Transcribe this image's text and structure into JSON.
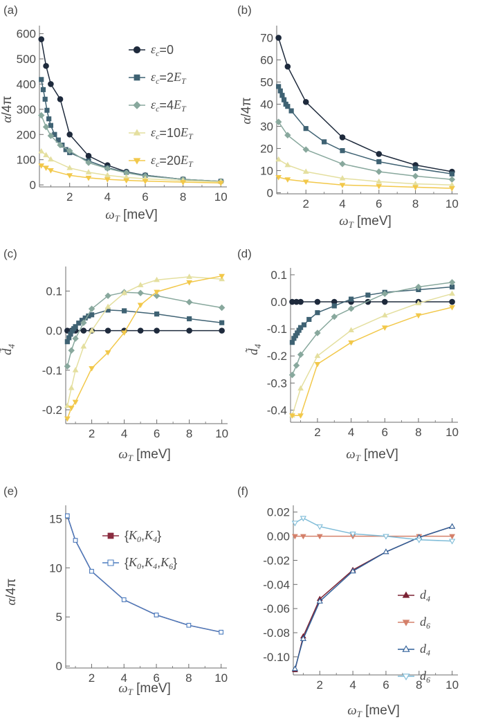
{
  "figure": {
    "panel_labels": [
      "(a)",
      "(b)",
      "(c)",
      "(d)",
      "(e)",
      "(f)"
    ]
  },
  "colors": {
    "c0": "#1e2a3c",
    "c2": "#3f6273",
    "c4": "#88a89d",
    "c10": "#e4df9f",
    "c20": "#f2c84a",
    "e1": "#8b2d40",
    "e2": "#4b7cbf",
    "f_d4a": "#7b2233",
    "f_d6a": "#d4806a",
    "f_d4b": "#2f5f98",
    "f_d6b": "#7fbcd8",
    "axis": "#6b6b6b"
  },
  "chart_data": [
    {
      "panel": "(a)",
      "type": "line",
      "xlabel": "ωT [meV]",
      "ylabel": "α/4π",
      "xlim": [
        0.4,
        10.1
      ],
      "ylim": [
        -8,
        610
      ],
      "xticks": [
        2,
        4,
        6,
        8,
        10
      ],
      "yticks": [
        0,
        100,
        200,
        300,
        400,
        500,
        600
      ],
      "ytick_labels": [
        "0",
        "100",
        "200",
        "300",
        "400",
        "500",
        "600"
      ],
      "legend": "top-right",
      "series": [
        {
          "name": "εc=0",
          "color_key": "c0",
          "marker": "circle",
          "x": [
            0.5,
            0.75,
            1,
            1.5,
            2,
            3,
            4,
            5,
            6,
            8,
            10
          ],
          "y": [
            578,
            472,
            400,
            340,
            200,
            115,
            78,
            52,
            38,
            22,
            14
          ]
        },
        {
          "name": "εc=2ET",
          "color_key": "c2",
          "marker": "square",
          "x": [
            0.5,
            0.6,
            0.7,
            0.8,
            0.9,
            1,
            1.2,
            1.4,
            1.6,
            1.8,
            2,
            3,
            4,
            5,
            6,
            8,
            10
          ],
          "y": [
            418,
            378,
            340,
            296,
            262,
            236,
            200,
            178,
            158,
            140,
            128,
            95,
            68,
            50,
            38,
            22,
            14
          ]
        },
        {
          "name": "εc=4ET",
          "color_key": "c4",
          "marker": "diamond",
          "x": [
            0.5,
            0.75,
            1,
            1.5,
            2,
            3,
            4,
            5,
            6,
            8,
            10
          ],
          "y": [
            276,
            230,
            195,
            158,
            135,
            88,
            65,
            48,
            35,
            22,
            14
          ]
        },
        {
          "name": "εc=10ET",
          "color_key": "c10",
          "marker": "triangle",
          "x": [
            0.5,
            0.75,
            1,
            2,
            3,
            4,
            5,
            6,
            8,
            10
          ],
          "y": [
            133,
            118,
            101,
            67,
            50,
            38,
            30,
            24,
            17,
            12
          ]
        },
        {
          "name": "εc=20ET",
          "color_key": "c20",
          "marker": "triangle-down",
          "x": [
            0.5,
            0.75,
            1,
            2,
            3,
            4,
            5,
            6,
            8,
            10
          ],
          "y": [
            77,
            68,
            58,
            38,
            28,
            22,
            18,
            15,
            11,
            8
          ]
        }
      ]
    },
    {
      "panel": "(b)",
      "type": "line",
      "xlabel": "ωT [meV]",
      "ylabel": "α/4π",
      "xlim": [
        0.4,
        10.1
      ],
      "ylim": [
        -0.5,
        73
      ],
      "xticks": [
        2,
        4,
        6,
        8,
        10
      ],
      "yticks": [
        0,
        10,
        20,
        30,
        40,
        50,
        60,
        70
      ],
      "ytick_labels": [
        "0",
        "10",
        "20",
        "30",
        "40",
        "50",
        "60",
        "70"
      ],
      "series": [
        {
          "name": "εc=0",
          "color_key": "c0",
          "marker": "circle",
          "x": [
            0.5,
            1,
            2,
            4,
            6,
            8,
            10
          ],
          "y": [
            70,
            57,
            41,
            25,
            17.5,
            12.5,
            9.5
          ]
        },
        {
          "name": "εc=2ET",
          "color_key": "c2",
          "marker": "square",
          "x": [
            0.5,
            0.6,
            0.7,
            0.8,
            0.9,
            1,
            1.2,
            2,
            3,
            4,
            6,
            8,
            10
          ],
          "y": [
            48,
            46,
            44,
            42,
            40,
            39,
            37,
            29,
            23,
            19,
            14,
            11,
            8.5
          ]
        },
        {
          "name": "εc=4ET",
          "color_key": "c4",
          "marker": "diamond",
          "x": [
            0.5,
            1,
            2,
            4,
            6,
            8,
            10
          ],
          "y": [
            32,
            26,
            19.5,
            13,
            9.5,
            7.5,
            6
          ]
        },
        {
          "name": "εc=10ET",
          "color_key": "c10",
          "marker": "triangle",
          "x": [
            0.5,
            1,
            2,
            4,
            6,
            8,
            10
          ],
          "y": [
            15,
            12.5,
            9.5,
            6.5,
            5,
            4,
            3.5
          ]
        },
        {
          "name": "εc=20ET",
          "color_key": "c20",
          "marker": "triangle-down",
          "x": [
            0.5,
            1,
            2,
            4,
            6,
            8,
            10
          ],
          "y": [
            7,
            6,
            5,
            3.5,
            3,
            2.5,
            2
          ]
        }
      ]
    },
    {
      "panel": "(c)",
      "type": "line",
      "xlabel": "ωT [meV]",
      "ylabel": "d̃4",
      "xlim": [
        0.4,
        10.1
      ],
      "ylim": [
        -0.235,
        0.148
      ],
      "xticks": [
        2,
        4,
        6,
        8,
        10
      ],
      "yticks": [
        -0.2,
        -0.1,
        0.0,
        0.1
      ],
      "ytick_labels": [
        "-0.2",
        "-0.1",
        "0.0",
        "0.1"
      ],
      "series": [
        {
          "name": "εc=0",
          "color_key": "c0",
          "marker": "circle",
          "x": [
            0.5,
            0.75,
            1,
            1.5,
            2,
            3,
            4,
            5,
            6,
            8,
            10
          ],
          "y": [
            0,
            0,
            0,
            0,
            0,
            0,
            0,
            0,
            0,
            0,
            0
          ]
        },
        {
          "name": "εc=2ET",
          "color_key": "c2",
          "marker": "square",
          "x": [
            0.5,
            0.6,
            0.7,
            0.8,
            0.9,
            1,
            1.2,
            1.4,
            1.6,
            1.8,
            2,
            3,
            4,
            6,
            8,
            10
          ],
          "y": [
            -0.028,
            -0.018,
            -0.009,
            -0.001,
            0.005,
            0.01,
            0.019,
            0.026,
            0.032,
            0.037,
            0.04,
            0.052,
            0.05,
            0.042,
            0.03,
            0.02
          ]
        },
        {
          "name": "εc=4ET",
          "color_key": "c4",
          "marker": "diamond",
          "x": [
            0.5,
            0.75,
            1,
            1.5,
            2,
            3,
            4,
            5,
            6,
            8,
            10
          ],
          "y": [
            -0.09,
            -0.05,
            -0.02,
            0.02,
            0.055,
            0.088,
            0.097,
            0.095,
            0.088,
            0.072,
            0.058
          ]
        },
        {
          "name": "εc=10ET",
          "color_key": "c10",
          "marker": "triangle",
          "x": [
            0.5,
            0.75,
            1,
            1.5,
            2,
            3,
            4,
            5,
            6,
            8,
            10
          ],
          "y": [
            -0.19,
            -0.145,
            -0.1,
            -0.04,
            0.0,
            0.06,
            0.095,
            0.115,
            0.128,
            0.136,
            0.13
          ]
        },
        {
          "name": "εc=20ET",
          "color_key": "c20",
          "marker": "triangle-down",
          "x": [
            0.5,
            0.75,
            1,
            2,
            3,
            4,
            5,
            6,
            8,
            10
          ],
          "y": [
            -0.222,
            -0.195,
            -0.18,
            -0.095,
            -0.055,
            -0.005,
            0.065,
            0.098,
            0.122,
            0.138
          ]
        }
      ]
    },
    {
      "panel": "(d)",
      "type": "line",
      "xlabel": "ωT [meV]",
      "ylabel": "d̃4",
      "xlim": [
        0.4,
        10.1
      ],
      "ylim": [
        -0.445,
        0.105
      ],
      "xticks": [
        2,
        4,
        6,
        8,
        10
      ],
      "yticks": [
        -0.4,
        -0.3,
        -0.2,
        -0.1,
        0.0,
        0.1
      ],
      "ytick_labels": [
        "-0.4",
        "-0.3",
        "-0.2",
        "-0.1",
        "0.0",
        "0.1"
      ],
      "series": [
        {
          "name": "εc=0",
          "color_key": "c0",
          "marker": "circle",
          "x": [
            0.5,
            0.75,
            1,
            2,
            3,
            4,
            5,
            6,
            8,
            10
          ],
          "y": [
            0,
            0,
            0,
            0,
            0,
            0,
            0,
            0,
            0,
            0
          ]
        },
        {
          "name": "εc=2ET",
          "color_key": "c2",
          "marker": "square",
          "x": [
            0.5,
            0.6,
            0.7,
            0.8,
            0.9,
            1,
            1.2,
            1.5,
            2,
            3,
            4,
            5,
            6,
            8,
            10
          ],
          "y": [
            -0.15,
            -0.135,
            -0.125,
            -0.115,
            -0.105,
            -0.095,
            -0.085,
            -0.065,
            -0.04,
            -0.015,
            0.01,
            0.025,
            0.035,
            0.045,
            0.055
          ]
        },
        {
          "name": "εc=4ET",
          "color_key": "c4",
          "marker": "diamond",
          "x": [
            0.5,
            0.75,
            1,
            2,
            3,
            4,
            6,
            8,
            10
          ],
          "y": [
            -0.27,
            -0.235,
            -0.195,
            -0.115,
            -0.055,
            -0.025,
            0.03,
            0.055,
            0.072
          ]
        },
        {
          "name": "εc=10ET",
          "color_key": "c10",
          "marker": "triangle",
          "x": [
            0.5,
            1,
            2,
            4,
            6,
            8,
            10
          ],
          "y": [
            -0.42,
            -0.32,
            -0.2,
            -0.105,
            -0.05,
            -0.005,
            0.03
          ]
        },
        {
          "name": "εc=20ET",
          "color_key": "c20",
          "marker": "triangle-down",
          "x": [
            0.5,
            1,
            2,
            4,
            6,
            8,
            10
          ],
          "y": [
            -0.42,
            -0.42,
            -0.23,
            -0.15,
            -0.095,
            -0.05,
            -0.02
          ]
        }
      ]
    },
    {
      "panel": "(e)",
      "type": "line",
      "xlabel": "ωT [meV]",
      "ylabel": "α/4π",
      "xlim": [
        0.4,
        10.1
      ],
      "ylim": [
        -0.2,
        15.8
      ],
      "xticks": [
        2,
        4,
        6,
        8,
        10
      ],
      "yticks": [
        0,
        5,
        10,
        15
      ],
      "ytick_labels": [
        "0",
        "5",
        "10",
        "15"
      ],
      "legend": "top-right",
      "series": [
        {
          "name": "{K0,K4}",
          "color_key": "e1",
          "marker": "square",
          "x": [
            0.5,
            1,
            2,
            4,
            6,
            8,
            10
          ],
          "y": [
            15.3,
            12.8,
            9.65,
            6.75,
            5.2,
            4.15,
            3.45
          ]
        },
        {
          "name": "{K0,K4,K6}",
          "color_key": "e2",
          "marker": "square-open",
          "x": [
            0.5,
            1,
            2,
            4,
            6,
            8,
            10
          ],
          "y": [
            15.3,
            12.8,
            9.65,
            6.75,
            5.2,
            4.15,
            3.45
          ]
        }
      ]
    },
    {
      "panel": "(f)",
      "type": "line",
      "xlabel": "ωT [meV]",
      "ylabel": "",
      "xlim": [
        0.4,
        10.1
      ],
      "ylim": [
        -0.115,
        0.021
      ],
      "xticks": [
        2,
        4,
        6,
        8,
        10
      ],
      "yticks": [
        -0.1,
        -0.08,
        -0.06,
        -0.04,
        -0.02,
        0.0,
        0.02
      ],
      "ytick_labels": [
        "-0.10",
        "-0.08",
        "-0.06",
        "-0.04",
        "-0.02",
        "0.00",
        "0.02"
      ],
      "legend": "bottom-right",
      "series": [
        {
          "name": "d4",
          "color_key": "f_d4a",
          "marker": "triangle",
          "x": [
            0.5,
            1,
            2,
            4,
            6,
            8,
            10
          ],
          "y": [
            -0.111,
            -0.083,
            -0.052,
            -0.028,
            -0.013,
            -0.001,
            0.008
          ]
        },
        {
          "name": "d6",
          "color_key": "f_d6a",
          "marker": "triangle-down",
          "x": [
            0.5,
            1,
            2,
            4,
            6,
            8,
            10
          ],
          "y": [
            0,
            0,
            0,
            0,
            0,
            0,
            0
          ]
        },
        {
          "name": "d4",
          "color_key": "f_d4b",
          "marker": "triangle-open",
          "x": [
            0.5,
            1,
            2,
            4,
            6,
            8,
            10
          ],
          "y": [
            -0.11,
            -0.085,
            -0.054,
            -0.029,
            -0.013,
            -0.001,
            0.008
          ]
        },
        {
          "name": "d6",
          "color_key": "f_d6b",
          "marker": "triangle-down-open",
          "x": [
            0.5,
            1,
            2,
            4,
            6,
            8,
            10
          ],
          "y": [
            0.011,
            0.015,
            0.008,
            0.002,
            0.0,
            -0.003,
            -0.004
          ]
        }
      ]
    }
  ]
}
